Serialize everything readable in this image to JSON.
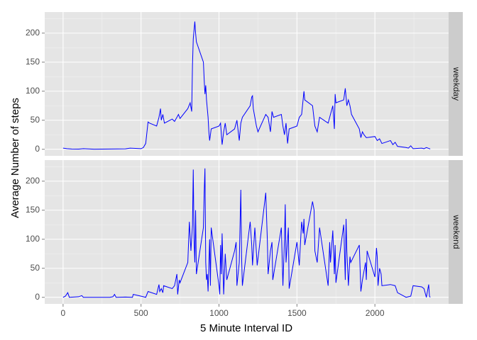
{
  "chart_data": [
    {
      "type": "line",
      "facet_label": "weekday",
      "y_label": "Average Number of steps",
      "x": [
        0,
        25,
        55,
        100,
        130,
        200,
        300,
        400,
        430,
        500,
        515,
        530,
        545,
        555,
        600,
        615,
        625,
        630,
        640,
        650,
        700,
        715,
        730,
        740,
        750,
        800,
        815,
        825,
        830,
        835,
        845,
        850,
        855,
        900,
        905,
        910,
        915,
        920,
        925,
        930,
        935,
        940,
        950,
        1000,
        1010,
        1020,
        1030,
        1040,
        1050,
        1100,
        1115,
        1130,
        1140,
        1150,
        1200,
        1210,
        1215,
        1220,
        1230,
        1240,
        1250,
        1300,
        1315,
        1330,
        1340,
        1350,
        1400,
        1410,
        1420,
        1430,
        1440,
        1450,
        1500,
        1515,
        1530,
        1545,
        1550,
        1600,
        1615,
        1630,
        1645,
        1700,
        1715,
        1730,
        1740,
        1745,
        1750,
        1800,
        1810,
        1815,
        1820,
        1830,
        1840,
        1850,
        1900,
        1910,
        1920,
        1930,
        1945,
        2000,
        2015,
        2030,
        2045,
        2100,
        2115,
        2130,
        2145,
        2200,
        2215,
        2230,
        2245,
        2300,
        2315,
        2330,
        2355
      ],
      "values": [
        2,
        1,
        0.5,
        0.3,
        1,
        0.2,
        0.5,
        0.8,
        2,
        1,
        3,
        10,
        47,
        45,
        40,
        55,
        70,
        50,
        60,
        45,
        52,
        48,
        55,
        60,
        53,
        70,
        80,
        65,
        145,
        190,
        220,
        200,
        185,
        150,
        120,
        95,
        110,
        85,
        70,
        55,
        30,
        15,
        35,
        40,
        45,
        8,
        30,
        45,
        25,
        35,
        50,
        15,
        45,
        55,
        75,
        90,
        92,
        70,
        55,
        40,
        30,
        60,
        55,
        30,
        65,
        55,
        60,
        40,
        25,
        45,
        10,
        35,
        40,
        55,
        60,
        100,
        85,
        75,
        40,
        30,
        55,
        45,
        60,
        75,
        35,
        95,
        80,
        85,
        105,
        90,
        75,
        85,
        75,
        60,
        35,
        20,
        30,
        25,
        20,
        22,
        15,
        18,
        10,
        15,
        8,
        12,
        5,
        3,
        2,
        6,
        1,
        2,
        1,
        3,
        0.5
      ],
      "color": "#0000ff",
      "xlim": [
        -117.75,
        2472.75
      ],
      "xticks": [
        0,
        500,
        1000,
        1500,
        2000
      ],
      "x_minor_ticks": [
        250,
        750,
        1250,
        1750,
        2250
      ],
      "ylim": [
        -11.3,
        236.3
      ],
      "yticks": [
        0,
        50,
        100,
        150,
        200
      ],
      "y_minor_ticks": [
        25,
        75,
        125,
        175,
        225
      ],
      "grid": true
    },
    {
      "type": "line",
      "facet_label": "weekend",
      "x_label": "5 Minute Interval ID",
      "x": [
        0,
        15,
        30,
        40,
        100,
        120,
        130,
        200,
        300,
        320,
        330,
        340,
        400,
        445,
        450,
        500,
        530,
        545,
        600,
        615,
        620,
        630,
        640,
        645,
        700,
        715,
        730,
        735,
        745,
        750,
        800,
        810,
        820,
        830,
        835,
        840,
        845,
        850,
        855,
        900,
        905,
        910,
        915,
        920,
        925,
        930,
        940,
        945,
        950,
        1000,
        1005,
        1010,
        1015,
        1020,
        1030,
        1040,
        1050,
        1100,
        1110,
        1115,
        1130,
        1140,
        1145,
        1150,
        1200,
        1210,
        1215,
        1230,
        1245,
        1300,
        1310,
        1315,
        1330,
        1340,
        1345,
        1400,
        1410,
        1420,
        1425,
        1430,
        1445,
        1450,
        1500,
        1515,
        1530,
        1540,
        1545,
        1550,
        1600,
        1610,
        1615,
        1630,
        1645,
        1700,
        1710,
        1715,
        1730,
        1740,
        1745,
        1750,
        1800,
        1810,
        1815,
        1820,
        1830,
        1840,
        1845,
        1900,
        1910,
        1920,
        1930,
        1940,
        1945,
        1950,
        2000,
        2010,
        2015,
        2020,
        2030,
        2040,
        2045,
        2100,
        2130,
        2145,
        2200,
        2215,
        2230,
        2245,
        2300,
        2315,
        2330,
        2345,
        2350,
        2355
      ],
      "values": [
        0,
        2,
        8,
        0,
        1,
        3,
        0,
        0,
        0,
        1,
        5,
        0,
        0.5,
        0,
        5,
        2,
        0,
        10,
        5,
        22,
        10,
        15,
        8,
        20,
        15,
        20,
        40,
        5,
        30,
        25,
        60,
        130,
        80,
        125,
        220,
        100,
        60,
        150,
        40,
        120,
        180,
        222,
        60,
        30,
        40,
        10,
        100,
        20,
        120,
        20,
        5,
        90,
        40,
        110,
        5,
        75,
        30,
        80,
        95,
        20,
        60,
        185,
        70,
        20,
        130,
        90,
        55,
        120,
        55,
        180,
        100,
        40,
        80,
        95,
        30,
        120,
        20,
        100,
        160,
        60,
        120,
        15,
        95,
        55,
        130,
        110,
        135,
        90,
        165,
        150,
        80,
        60,
        120,
        20,
        95,
        60,
        115,
        40,
        90,
        25,
        125,
        30,
        135,
        80,
        20,
        70,
        60,
        90,
        10,
        30,
        45,
        60,
        30,
        80,
        35,
        85,
        70,
        20,
        50,
        40,
        20,
        22,
        20,
        8,
        0,
        1,
        2,
        20,
        18,
        15,
        0,
        22,
        2,
        0
      ],
      "color": "#0000ff",
      "xlim": [
        -117.75,
        2472.75
      ],
      "xticks": [
        0,
        500,
        1000,
        1500,
        2000
      ],
      "x_minor_ticks": [
        250,
        750,
        1250,
        1750,
        2250
      ],
      "ylim": [
        -11.3,
        236.3
      ],
      "yticks": [
        0,
        50,
        100,
        150,
        200
      ],
      "y_minor_ticks": [
        25,
        75,
        125,
        175,
        225
      ],
      "grid": true
    }
  ]
}
